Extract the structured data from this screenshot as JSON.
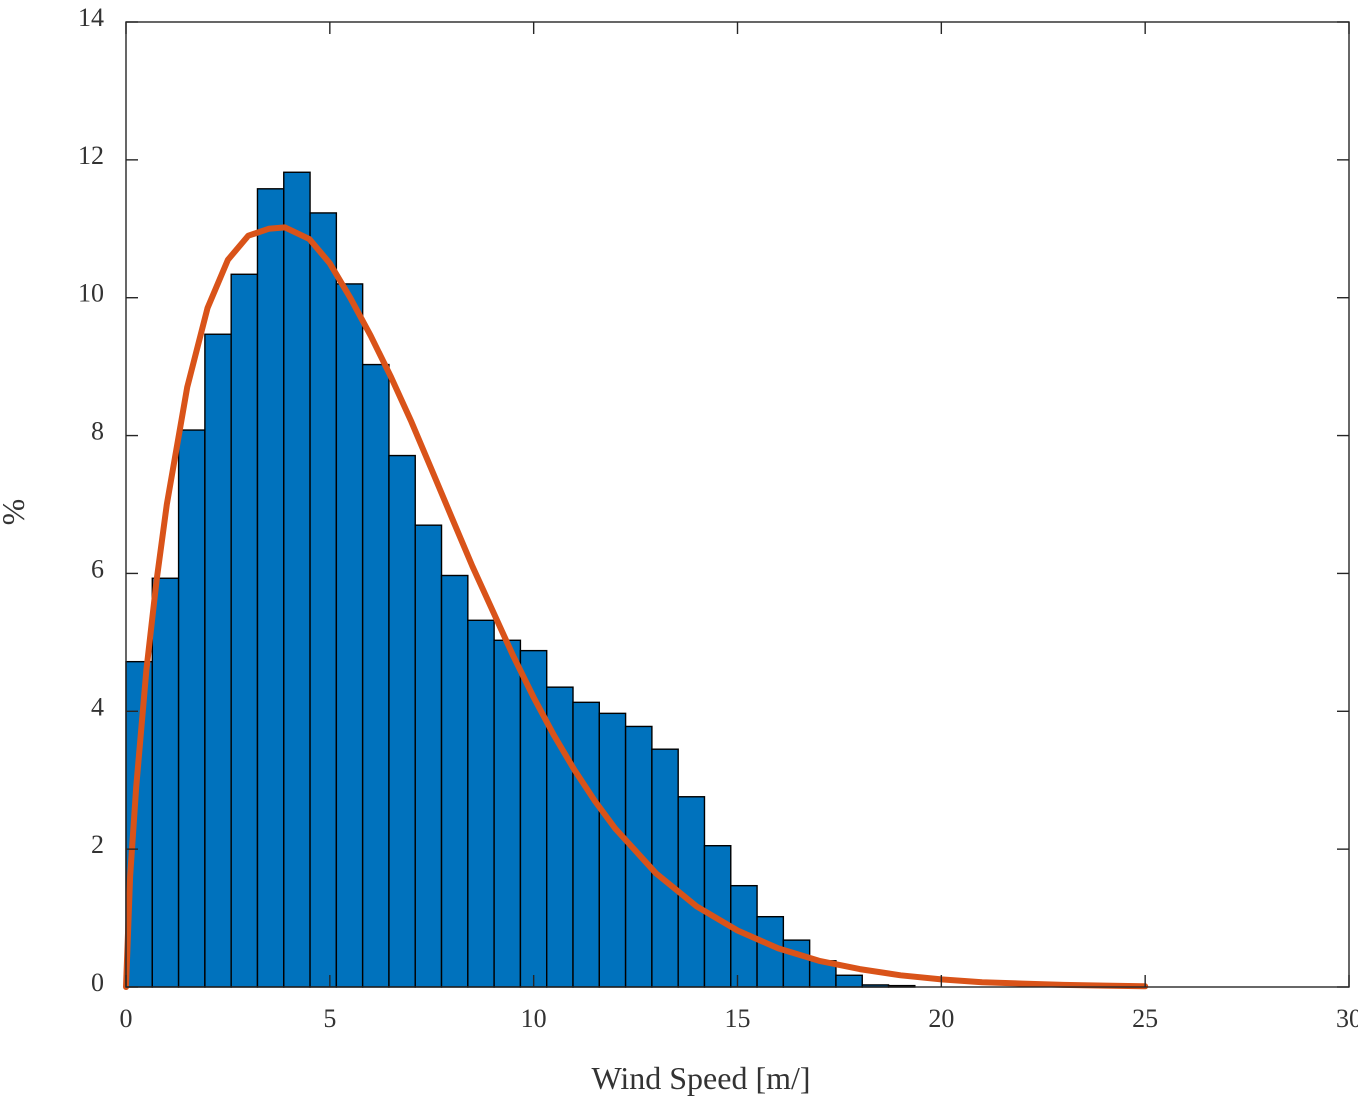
{
  "chart_data": {
    "type": "bar",
    "title": "",
    "xlabel": "Wind Speed [m/]",
    "ylabel": "%",
    "xlim": [
      0,
      30
    ],
    "ylim": [
      0,
      14
    ],
    "xticks": [
      0,
      5,
      10,
      15,
      20,
      25,
      30
    ],
    "yticks": [
      0,
      2,
      4,
      6,
      8,
      10,
      12,
      14
    ],
    "grid": false,
    "legend": "none",
    "histogram": {
      "bin_width": 0.645,
      "bin_start": 0,
      "values": [
        4.72,
        5.93,
        8.08,
        9.47,
        10.34,
        11.58,
        11.82,
        11.23,
        10.2,
        9.03,
        7.71,
        6.7,
        5.97,
        5.32,
        5.03,
        4.88,
        4.35,
        4.13,
        3.97,
        3.78,
        3.45,
        2.76,
        2.05,
        1.47,
        1.02,
        0.68,
        0.38,
        0.17,
        0.03,
        0.02
      ],
      "color": "#0072BD"
    },
    "fit_curve": {
      "x": [
        0,
        0.1,
        0.25,
        0.5,
        0.75,
        1,
        1.5,
        2,
        2.5,
        3,
        3.5,
        3.9,
        4.5,
        5,
        5.5,
        6,
        6.5,
        7,
        7.5,
        8,
        8.5,
        9,
        9.5,
        10,
        10.5,
        11,
        11.5,
        12,
        13,
        14,
        15,
        16,
        17,
        18,
        19,
        20,
        21,
        22,
        23,
        24,
        25
      ],
      "y": [
        0,
        1.6,
        2.9,
        4.6,
        5.9,
        7.0,
        8.7,
        9.85,
        10.55,
        10.9,
        11.0,
        11.02,
        10.85,
        10.5,
        10.0,
        9.45,
        8.85,
        8.2,
        7.5,
        6.8,
        6.1,
        5.45,
        4.8,
        4.2,
        3.65,
        3.15,
        2.7,
        2.3,
        1.65,
        1.17,
        0.82,
        0.56,
        0.38,
        0.26,
        0.17,
        0.11,
        0.07,
        0.05,
        0.03,
        0.02,
        0.01
      ],
      "color": "#D95319"
    }
  }
}
